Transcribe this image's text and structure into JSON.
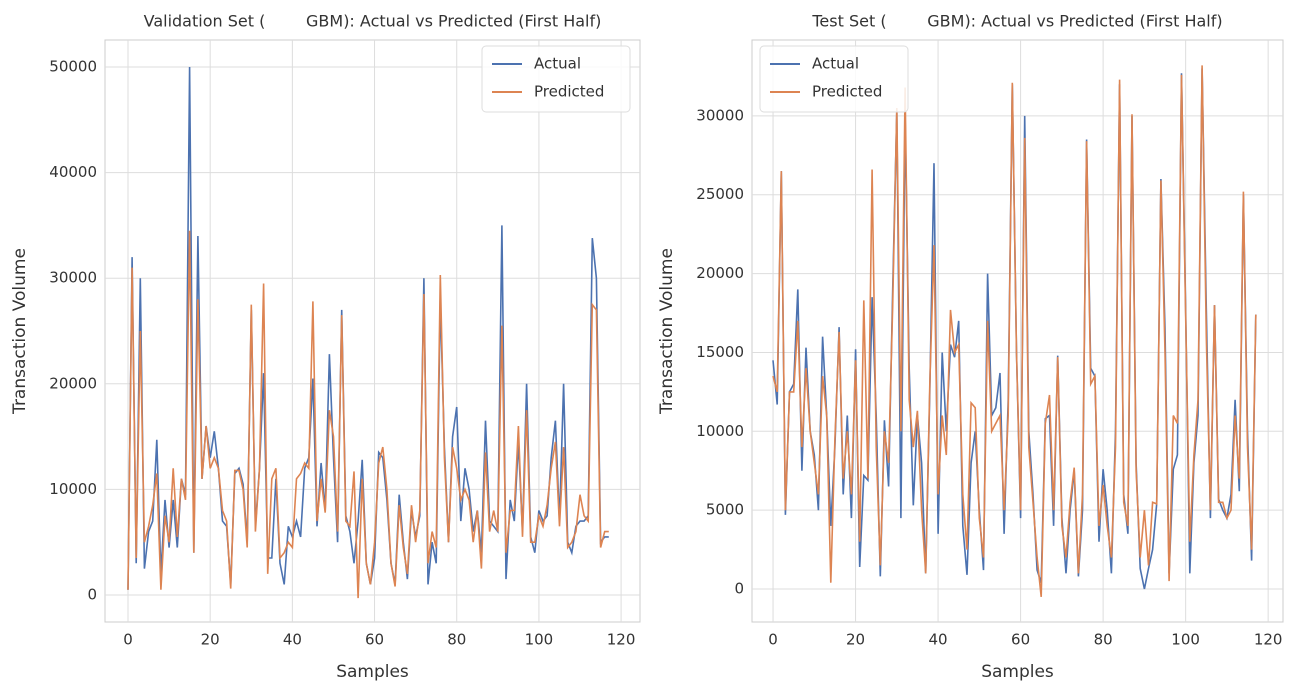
{
  "chart_data": [
    {
      "type": "line",
      "title": "Validation Set (        GBM): Actual vs Predicted (First Half)",
      "x_label": "Samples",
      "y_label": "Transaction Volume",
      "x": [
        0,
        1,
        2,
        3,
        4,
        5,
        6,
        7,
        8,
        9,
        10,
        11,
        12,
        13,
        14,
        15,
        16,
        17,
        18,
        19,
        20,
        21,
        22,
        23,
        24,
        25,
        26,
        27,
        28,
        29,
        30,
        31,
        32,
        33,
        34,
        35,
        36,
        37,
        38,
        39,
        40,
        41,
        42,
        43,
        44,
        45,
        46,
        47,
        48,
        49,
        50,
        51,
        52,
        53,
        54,
        55,
        56,
        57,
        58,
        59,
        60,
        61,
        62,
        63,
        64,
        65,
        66,
        67,
        68,
        69,
        70,
        71,
        72,
        73,
        74,
        75,
        76,
        77,
        78,
        79,
        80,
        81,
        82,
        83,
        84,
        85,
        86,
        87,
        88,
        89,
        90,
        91,
        92,
        93,
        94,
        95,
        96,
        97,
        98,
        99,
        100,
        101,
        102,
        103,
        104,
        105,
        106,
        107,
        108,
        109,
        110,
        111,
        112,
        113,
        114,
        115,
        116,
        117
      ],
      "series": [
        {
          "name": "Actual",
          "color": "#4c72b0",
          "values": [
            500,
            32000,
            3000,
            30000,
            2500,
            6000,
            7000,
            14700,
            2000,
            9000,
            4500,
            9000,
            4500,
            11000,
            9500,
            50000,
            4000,
            34000,
            11000,
            16000,
            13000,
            15500,
            12000,
            7000,
            6500,
            1000,
            11500,
            12000,
            10500,
            5000,
            27000,
            6500,
            12000,
            21000,
            3500,
            3500,
            11000,
            3000,
            1000,
            6500,
            5500,
            7000,
            5500,
            12000,
            13000,
            20500,
            6500,
            12500,
            8000,
            22800,
            13000,
            5000,
            27000,
            7500,
            6000,
            3000,
            7000,
            12800,
            3000,
            1000,
            3500,
            13500,
            13000,
            9000,
            3000,
            1000,
            9500,
            5000,
            1500,
            8000,
            5500,
            7500,
            30000,
            1000,
            5000,
            3000,
            28000,
            14000,
            5000,
            15000,
            17800,
            7000,
            12000,
            10000,
            6000,
            8000,
            4000,
            16500,
            7000,
            6500,
            6000,
            35000,
            1500,
            9000,
            7000,
            14500,
            6000,
            20000,
            5500,
            4000,
            8000,
            7000,
            7500,
            13000,
            16500,
            7000,
            20000,
            5000,
            4000,
            6500,
            7000,
            7000,
            7500,
            33800,
            30000,
            5000,
            5500,
            5500
          ]
        },
        {
          "name": "Predicted",
          "color": "#dd8452",
          "values": [
            500,
            31000,
            3500,
            25000,
            5000,
            6500,
            8500,
            11500,
            500,
            7500,
            5000,
            12000,
            5500,
            11000,
            9000,
            34500,
            4000,
            28000,
            11000,
            16000,
            12000,
            13000,
            12000,
            8000,
            7000,
            600,
            11800,
            11800,
            10000,
            4500,
            27500,
            6000,
            12000,
            29500,
            2000,
            11000,
            12000,
            3500,
            4000,
            5000,
            4500,
            11000,
            11500,
            12500,
            12000,
            27800,
            7000,
            11000,
            7800,
            17500,
            15000,
            6000,
            26500,
            7000,
            6500,
            11700,
            -300,
            11000,
            3000,
            1000,
            5000,
            12500,
            14000,
            10000,
            3000,
            800,
            8500,
            4500,
            2000,
            8500,
            5000,
            8000,
            28500,
            3000,
            6000,
            4500,
            30300,
            13000,
            5000,
            14000,
            12000,
            9000,
            10000,
            9000,
            5000,
            8000,
            2500,
            13500,
            6000,
            8000,
            6000,
            25500,
            4000,
            8000,
            8000,
            16000,
            5500,
            17500,
            5000,
            5000,
            7500,
            6500,
            8500,
            12000,
            14500,
            6500,
            14000,
            4500,
            5000,
            6000,
            9500,
            7500,
            7000,
            27500,
            27000,
            4500,
            6000,
            6000
          ]
        }
      ],
      "xlim": [
        -5.6,
        124.6
      ],
      "ylim": [
        -2560,
        52560
      ],
      "xticks": [
        0,
        20,
        40,
        60,
        80,
        100,
        120
      ],
      "yticks": [
        0,
        10000,
        20000,
        30000,
        40000,
        50000
      ],
      "grid": true,
      "legend": "upper right"
    },
    {
      "type": "line",
      "title": "Test Set (        GBM): Actual vs Predicted (First Half)",
      "x_label": "Samples",
      "y_label": "Transaction Volume",
      "x": [
        0,
        1,
        2,
        3,
        4,
        5,
        6,
        7,
        8,
        9,
        10,
        11,
        12,
        13,
        14,
        15,
        16,
        17,
        18,
        19,
        20,
        21,
        22,
        23,
        24,
        25,
        26,
        27,
        28,
        29,
        30,
        31,
        32,
        33,
        34,
        35,
        36,
        37,
        38,
        39,
        40,
        41,
        42,
        43,
        44,
        45,
        46,
        47,
        48,
        49,
        50,
        51,
        52,
        53,
        54,
        55,
        56,
        57,
        58,
        59,
        60,
        61,
        62,
        63,
        64,
        65,
        66,
        67,
        68,
        69,
        70,
        71,
        72,
        73,
        74,
        75,
        76,
        77,
        78,
        79,
        80,
        81,
        82,
        83,
        84,
        85,
        86,
        87,
        88,
        89,
        90,
        91,
        92,
        93,
        94,
        95,
        96,
        97,
        98,
        99,
        100,
        101,
        102,
        103,
        104,
        105,
        106,
        107,
        108,
        109,
        110,
        111,
        112,
        113,
        114,
        115,
        116,
        117
      ],
      "series": [
        {
          "name": "Actual",
          "color": "#4c72b0",
          "values": [
            14500,
            11700,
            26500,
            4700,
            12500,
            13000,
            19000,
            7500,
            15300,
            10000,
            8500,
            5000,
            16000,
            11000,
            4000,
            9000,
            16600,
            6000,
            11000,
            4500,
            15200,
            1400,
            7200,
            6900,
            18500,
            11000,
            800,
            10700,
            6500,
            19000,
            30300,
            4500,
            30000,
            14000,
            5300,
            11000,
            8000,
            1000,
            12500,
            27000,
            3500,
            15000,
            10000,
            15500,
            14700,
            17000,
            4000,
            900,
            8000,
            10000,
            5000,
            1200,
            20000,
            11000,
            11500,
            13700,
            3500,
            12000,
            32000,
            15000,
            4500,
            30000,
            10000,
            6000,
            1200,
            400,
            10800,
            11000,
            4000,
            14800,
            4500,
            1000,
            5000,
            7500,
            800,
            5000,
            28500,
            14000,
            13500,
            3000,
            7600,
            5000,
            1000,
            10000,
            32000,
            6000,
            3500,
            30000,
            8000,
            1300,
            0,
            1300,
            2500,
            5400,
            26000,
            16500,
            1000,
            7600,
            8500,
            32700,
            18000,
            1000,
            8000,
            11000,
            33000,
            17800,
            4500,
            18000,
            5700,
            5000,
            4500,
            6000,
            12000,
            6200,
            25000,
            10000,
            1800,
            17400
          ]
        },
        {
          "name": "Predicted",
          "color": "#dd8452",
          "values": [
            13500,
            12500,
            26500,
            5000,
            12500,
            12500,
            17000,
            9000,
            14000,
            10000,
            8000,
            6000,
            13500,
            11000,
            400,
            9500,
            16300,
            7000,
            10000,
            6000,
            14500,
            3000,
            18300,
            7000,
            26600,
            9000,
            1500,
            10000,
            8000,
            18000,
            30500,
            10000,
            31800,
            12000,
            9000,
            11300,
            5000,
            1000,
            13000,
            21800,
            6000,
            11000,
            8500,
            17700,
            15000,
            15500,
            6000,
            2500,
            11800,
            11500,
            4500,
            2000,
            17000,
            10000,
            10500,
            11000,
            5000,
            11000,
            32100,
            15000,
            5000,
            28600,
            9000,
            5500,
            2000,
            -500,
            10500,
            12300,
            5000,
            14700,
            4000,
            2000,
            5500,
            7700,
            1000,
            6000,
            28400,
            13000,
            13500,
            4000,
            6600,
            4000,
            2000,
            9000,
            32300,
            5500,
            4000,
            30100,
            7500,
            2000,
            5000,
            1500,
            5500,
            5400,
            25900,
            15000,
            500,
            11000,
            10500,
            32600,
            17500,
            3000,
            8500,
            12000,
            33200,
            16000,
            5000,
            18000,
            5500,
            5500,
            4500,
            5000,
            11000,
            7000,
            25200,
            9000,
            2500,
            17400
          ]
        }
      ],
      "xlim": [
        -5.1,
        123.6
      ],
      "ylim": [
        -2090,
        34810
      ],
      "xticks": [
        0,
        20,
        40,
        60,
        80,
        100,
        120
      ],
      "yticks": [
        0,
        5000,
        10000,
        15000,
        20000,
        25000,
        30000
      ],
      "grid": true,
      "legend": "upper left"
    }
  ]
}
